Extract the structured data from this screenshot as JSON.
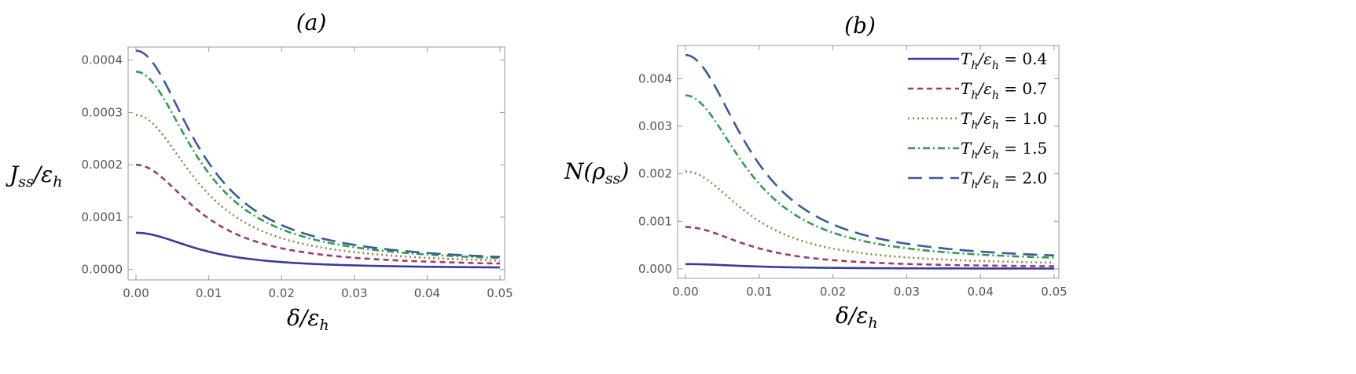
{
  "chart_data": [
    {
      "type": "line",
      "panel_title": "(a)",
      "xlabel": "δ/ε_h",
      "ylabel": "J_ss/ε_h",
      "xlim": [
        0,
        0.05
      ],
      "ylim": [
        -2e-05,
        0.000425
      ],
      "x_ticks": [
        "0.00",
        "0.01",
        "0.02",
        "0.03",
        "0.04",
        "0.05"
      ],
      "x_tick_values": [
        0,
        0.01,
        0.02,
        0.03,
        0.04,
        0.05
      ],
      "y_ticks": [
        "0.0000",
        "0.0001",
        "0.0002",
        "0.0003",
        "0.0004"
      ],
      "y_tick_values": [
        0,
        0.0001,
        0.0002,
        0.0003,
        0.0004
      ],
      "series": [
        {
          "name": "T_h/ε_h = 0.4",
          "peak": 7e-05,
          "tail": 1.5e-06,
          "style": "solid"
        },
        {
          "name": "T_h/ε_h = 0.7",
          "peak": 0.0002,
          "tail": 4.5e-06,
          "style": "dashed"
        },
        {
          "name": "T_h/ε_h = 1.0",
          "peak": 0.000295,
          "tail": 6.8e-06,
          "style": "dotted"
        },
        {
          "name": "T_h/ε_h = 1.5",
          "peak": 0.000378,
          "tail": 8.8e-06,
          "style": "dashdot"
        },
        {
          "name": "T_h/ε_h = 2.0",
          "peak": 0.000418,
          "tail": 9.7e-06,
          "style": "longdash"
        }
      ]
    },
    {
      "type": "line",
      "panel_title": "(b)",
      "xlabel": "δ/ε_h",
      "ylabel": "N(ρ_ss)",
      "xlim": [
        0,
        0.05
      ],
      "ylim": [
        -0.0002,
        0.0047
      ],
      "x_ticks": [
        "0.00",
        "0.01",
        "0.02",
        "0.03",
        "0.04",
        "0.05"
      ],
      "x_tick_values": [
        0,
        0.01,
        0.02,
        0.03,
        0.04,
        0.05
      ],
      "y_ticks": [
        "0.000",
        "0.001",
        "0.002",
        "0.003",
        "0.004"
      ],
      "y_tick_values": [
        0,
        0.001,
        0.002,
        0.003,
        0.004
      ],
      "legend_position": "top-right",
      "series": [
        {
          "name": "T_h/ε_h = 0.4",
          "peak": 0.0001,
          "tail": 2.5e-06,
          "style": "solid"
        },
        {
          "name": "T_h/ε_h = 0.7",
          "peak": 0.00088,
          "tail": 2.5e-05,
          "style": "dashed"
        },
        {
          "name": "T_h/ε_h = 1.0",
          "peak": 0.00205,
          "tail": 6e-05,
          "style": "dotted"
        },
        {
          "name": "T_h/ε_h = 1.5",
          "peak": 0.00365,
          "tail": 0.00011,
          "style": "dashdot"
        },
        {
          "name": "T_h/ε_h = 2.0",
          "peak": 0.0045,
          "tail": 0.00013,
          "style": "longdash"
        }
      ]
    }
  ],
  "legend": {
    "entries": [
      {
        "var": "T",
        "sub": "h",
        "den": "ε",
        "den_sub": "h",
        "value": "0.4"
      },
      {
        "var": "T",
        "sub": "h",
        "den": "ε",
        "den_sub": "h",
        "value": "0.7"
      },
      {
        "var": "T",
        "sub": "h",
        "den": "ε",
        "den_sub": "h",
        "value": "1.0"
      },
      {
        "var": "T",
        "sub": "h",
        "den": "ε",
        "den_sub": "h",
        "value": "1.5"
      },
      {
        "var": "T",
        "sub": "h",
        "den": "ε",
        "den_sub": "h",
        "value": "2.0"
      }
    ]
  },
  "colors": {
    "solid": "#3a3a9a",
    "dashed": "#9e3a6a",
    "dotted": "#8a8a3a",
    "dashdot": "#2e9e4e",
    "longdash": "#3b5a9a",
    "frame": "#999999",
    "tick_text": "#555555"
  }
}
